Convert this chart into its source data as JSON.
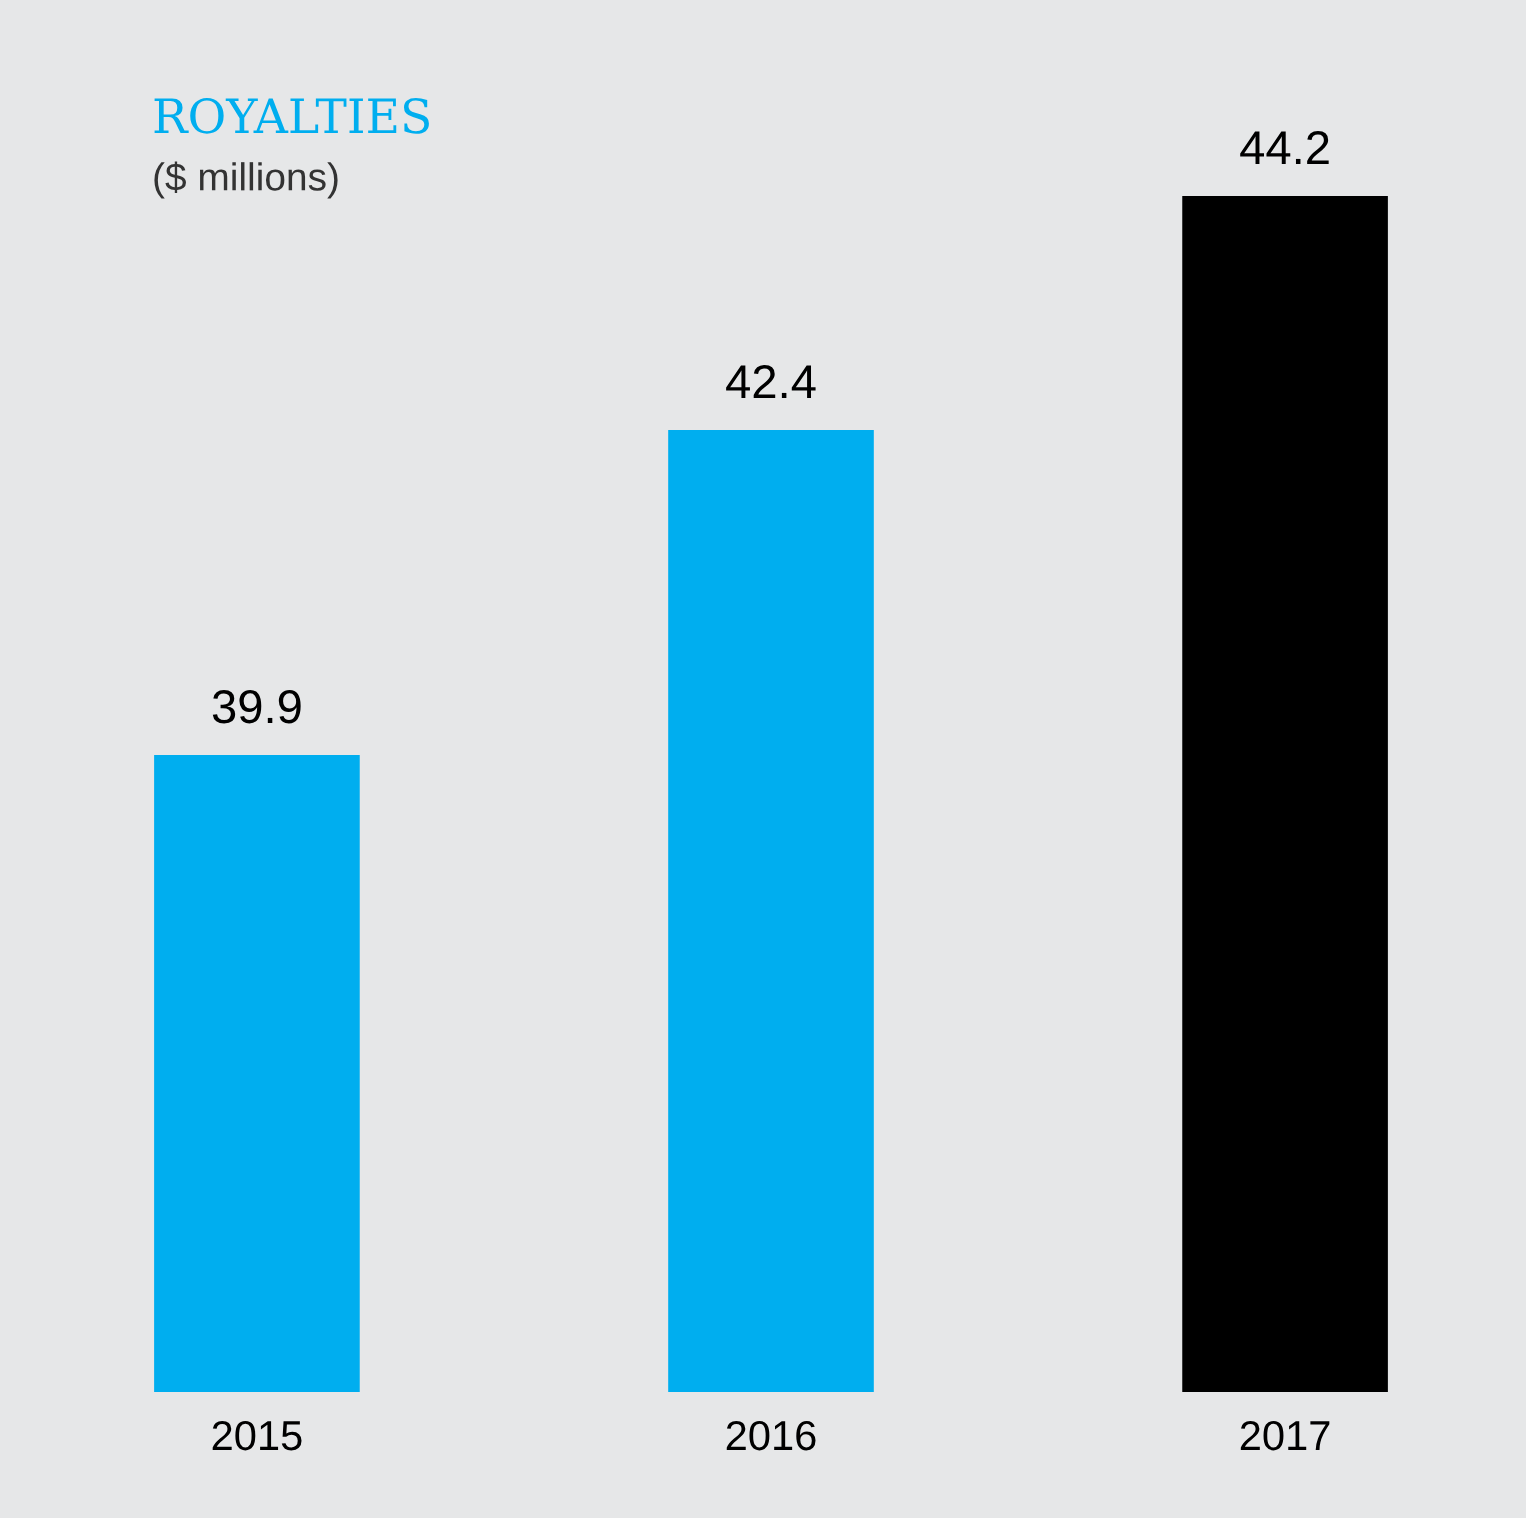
{
  "chart_data": {
    "type": "bar",
    "title": "ROYALTIES",
    "subtitle": "($ millions)",
    "categories": [
      "2015",
      "2016",
      "2017"
    ],
    "values": [
      39.9,
      42.4,
      44.2
    ],
    "colors": [
      "#00aeef",
      "#00aeef",
      "#000000"
    ],
    "ylim": [
      35,
      44.2
    ],
    "tick_labels": "x",
    "data_labels": true,
    "grid": false,
    "legend": false
  }
}
